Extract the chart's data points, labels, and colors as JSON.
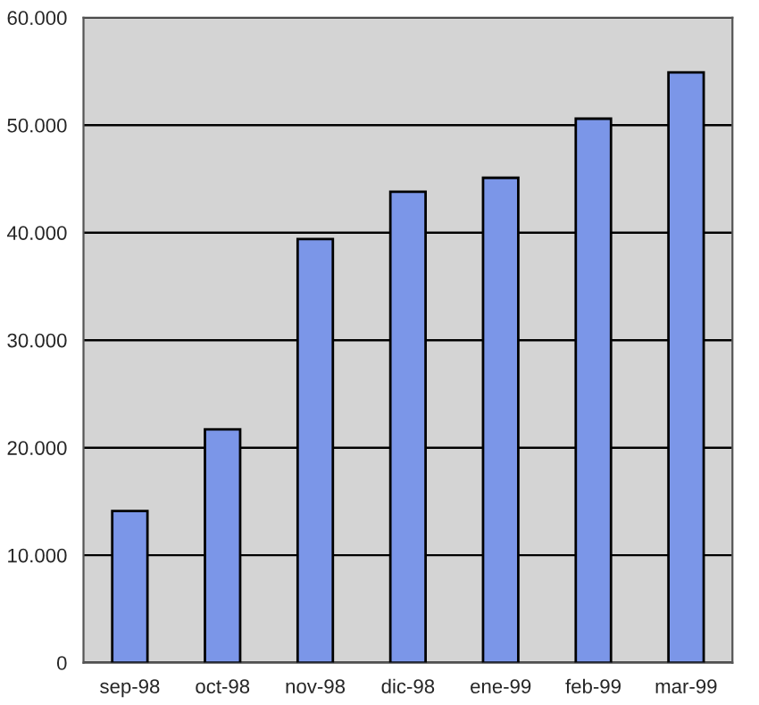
{
  "chart_data": {
    "type": "bar",
    "categories": [
      "sep-98",
      "oct-98",
      "nov-98",
      "dic-98",
      "ene-99",
      "feb-99",
      "mar-99"
    ],
    "values": [
      14100,
      21700,
      39400,
      43800,
      45100,
      50600,
      54900
    ],
    "color": "#7b96e8",
    "ylim": [
      0,
      60000
    ],
    "yticks": [
      0,
      {
        "value": 10000,
        "label": "10.000"
      },
      {
        "value": 20000,
        "label": "20.000"
      },
      {
        "value": 30000,
        "label": "30.000"
      },
      {
        "value": 40000,
        "label": "40.000"
      },
      {
        "value": 50000,
        "label": "50.000"
      },
      {
        "value": 60000,
        "label": "60.000"
      }
    ],
    "grid": "y"
  }
}
